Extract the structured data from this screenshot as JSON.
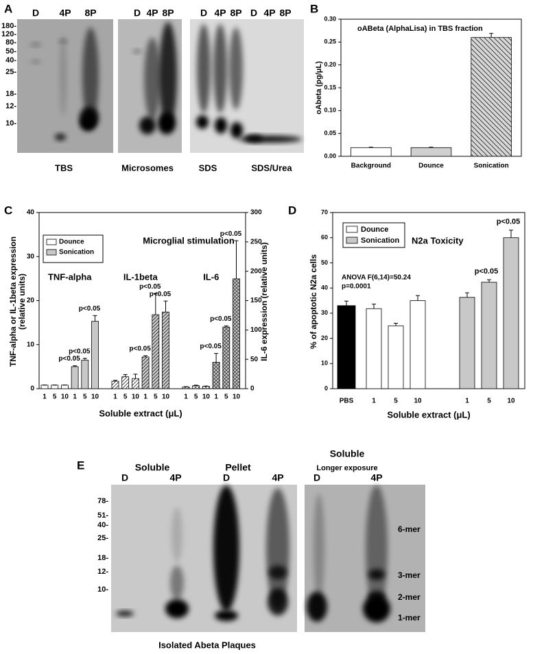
{
  "panel_labels": [
    "A",
    "B",
    "C",
    "D",
    "E"
  ],
  "blots_a": {
    "markers": [
      "180-",
      "120-",
      "80-",
      "50-",
      "40-",
      "25-",
      "18-",
      "12-",
      "10-"
    ],
    "gels": [
      {
        "lanes": [
          "D",
          "4P",
          "8P"
        ],
        "captions": [
          "TBS"
        ]
      },
      {
        "lanes": [
          "D",
          "4P",
          "8P"
        ],
        "captions": [
          "Microsomes"
        ]
      },
      {
        "lanes": [
          "D",
          "4P",
          "8P",
          "D",
          "4P",
          "8P"
        ],
        "captions": [
          "SDS",
          "SDS/Urea"
        ]
      }
    ]
  },
  "chart_data": [
    {
      "type": "bar",
      "title": "oABeta (AlphaLisa) in TBS fraction",
      "y_label": "oAbeta (pg/μL)",
      "categories": [
        "Background",
        "Dounce",
        "Sonication"
      ],
      "values": [
        0.019,
        0.019,
        0.26
      ],
      "errors": [
        0.001,
        0.001,
        0.009
      ],
      "colors": [
        "#ffffff",
        "#d0d0d0",
        "#d6d6d6"
      ],
      "patterns": [
        "none",
        "none",
        "hatch-back"
      ],
      "ylim": [
        0,
        0.3
      ],
      "yticks": [
        {
          "value": 0,
          "label": "0.00"
        },
        {
          "value": 0.05,
          "label": "0.05"
        },
        {
          "value": 0.1,
          "label": "0.10"
        },
        {
          "value": 0.15,
          "label": "0.15"
        },
        {
          "value": 0.2,
          "label": "0.20"
        },
        {
          "value": 0.25,
          "label": "0.25"
        },
        {
          "value": 0.3,
          "label": "0.30"
        }
      ]
    },
    {
      "type": "grouped-bar",
      "title": "Microglial stimulation",
      "y_label": [
        "TNF-alpha or IL-1beta expression",
        "(relative units)"
      ],
      "y2_label": "IL-6 expression (relative units)",
      "x_label": "Soluble extract (μL)",
      "categories": [
        "1",
        "5",
        "10"
      ],
      "legend": [
        "Dounce",
        "Sonication"
      ],
      "colors": [
        "#ffffff",
        "#c8c8c8"
      ],
      "groups": [
        {
          "label": "TNF-alpha",
          "axis": "y",
          "pattern": "none",
          "series": [
            {
              "values": [
                0.8,
                0.8,
                0.8
              ],
              "errors": [
                0.05,
                0.05,
                0.05
              ]
            },
            {
              "values": [
                5,
                6.5,
                15.3
              ],
              "errors": [
                0.2,
                0.4,
                1.3
              ],
              "annotations": [
                "p<0.05",
                "p<0.05",
                "p<0.05"
              ]
            }
          ]
        },
        {
          "label": "IL-1beta",
          "axis": "y",
          "pattern": "hatch",
          "series": [
            {
              "values": [
                1.7,
                2.7,
                2.3
              ],
              "errors": [
                0.2,
                0.5,
                1
              ]
            },
            {
              "values": [
                7.2,
                16.8,
                17.4
              ],
              "errors": [
                0.3,
                4.8,
                2.5
              ],
              "annotations": [
                "p<0.05",
                "p<0.05",
                "p<0.05"
              ]
            }
          ]
        },
        {
          "label": "IL-6",
          "axis": "y2",
          "pattern": "crosshatch",
          "series": [
            {
              "values": [
                3,
                5,
                4
              ],
              "errors": [
                0.5,
                1,
                0.5
              ]
            },
            {
              "values": [
                45,
                105,
                187
              ],
              "errors": [
                15,
                2,
                65
              ],
              "annotations": [
                "p<0.05",
                "p<0.05",
                "p<0.05"
              ]
            }
          ]
        }
      ],
      "ylim": [
        0,
        40
      ],
      "yticks": [
        0,
        10,
        20,
        30,
        40
      ],
      "y2lim": [
        0,
        300
      ],
      "y2ticks": [
        0,
        50,
        100,
        150,
        200,
        250,
        300
      ]
    },
    {
      "type": "grouped-bar",
      "title": "N2a Toxicity",
      "y_label": "% of apoptotic N2a cells",
      "x_label": "Soluble extract (μL)",
      "note": [
        "ANOVA F(6,14)=50.24",
        "p=0.0001"
      ],
      "groups": [
        {
          "categories": [
            "PBS"
          ],
          "color": "#000000",
          "values": [
            33
          ],
          "errors": [
            1.8
          ]
        },
        {
          "name": "Dounce",
          "categories": [
            "1",
            "5",
            "10"
          ],
          "color": "#ffffff",
          "values": [
            31.8,
            25,
            35
          ],
          "errors": [
            1.8,
            1,
            2
          ]
        },
        {
          "name": "Sonication",
          "categories": [
            "1",
            "5",
            "10"
          ],
          "color": "#c8c8c8",
          "values": [
            36.3,
            42.3,
            60
          ],
          "errors": [
            1.8,
            1,
            3
          ],
          "annotations": [
            null,
            "p<0.05",
            "p<0.05"
          ]
        }
      ],
      "ylim": [
        0,
        70
      ],
      "yticks": [
        0,
        10,
        20,
        30,
        40,
        50,
        60,
        70
      ]
    }
  ],
  "blot_e": {
    "headers": [
      "Soluble",
      "Pellet"
    ],
    "lanes": [
      "D",
      "4P",
      "D",
      "4P"
    ],
    "markers": [
      "78-",
      "51-",
      "40-",
      "25-",
      "18-",
      "12-",
      "10-"
    ],
    "right_header": "Soluble",
    "right_subheader": "Longer exposure",
    "right_lanes": [
      "D",
      "4P"
    ],
    "oligomers": [
      "6-mer",
      "3-mer",
      "2-mer",
      "1-mer"
    ],
    "caption": "Isolated Abeta Plaques"
  }
}
